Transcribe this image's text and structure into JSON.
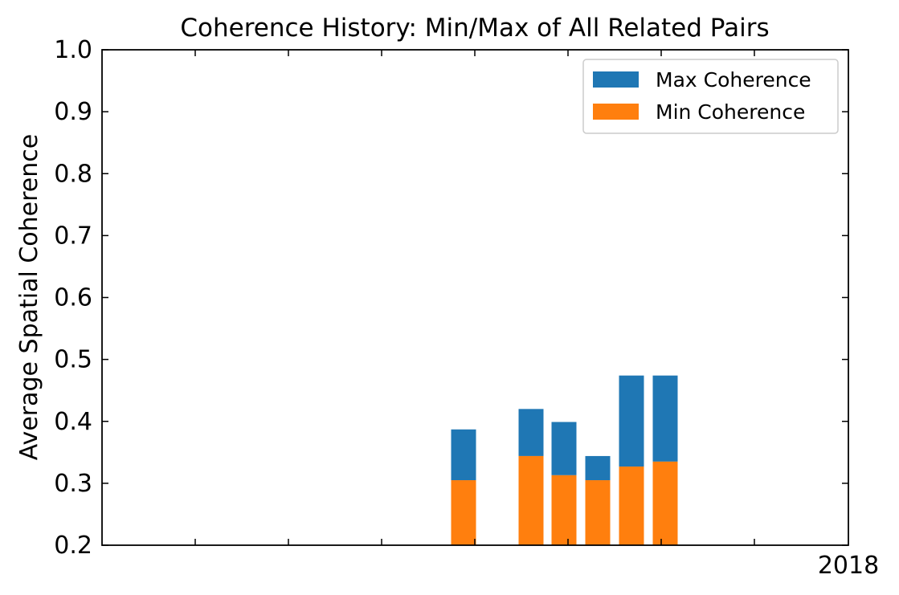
{
  "chart_data": {
    "type": "bar",
    "stacked": true,
    "title": "Coherence History: Min/Max of All Related Pairs",
    "xlabel": "",
    "ylabel": "Average Spatial Coherence",
    "ylim": [
      0.2,
      1.0
    ],
    "yticks": [
      "0.2",
      "0.3",
      "0.4",
      "0.5",
      "0.6",
      "0.7",
      "0.8",
      "0.9",
      "1.0"
    ],
    "x_tick_labels": [
      "2018"
    ],
    "grid": false,
    "legend_position": "top-right",
    "series": [
      {
        "name": "Max Coherence",
        "color": "#1f77b4",
        "bars": [
          {
            "bottom": 0.305,
            "top": 0.387
          },
          {
            "bottom": 0.344,
            "top": 0.42
          },
          {
            "bottom": 0.313,
            "top": 0.399
          },
          {
            "bottom": 0.305,
            "top": 0.344
          },
          {
            "bottom": 0.327,
            "top": 0.474
          },
          {
            "bottom": 0.335,
            "top": 0.474
          }
        ]
      },
      {
        "name": "Min Coherence",
        "color": "#ff7f0e",
        "values": [
          0.305,
          0.344,
          0.313,
          0.305,
          0.327,
          0.335
        ]
      }
    ]
  }
}
